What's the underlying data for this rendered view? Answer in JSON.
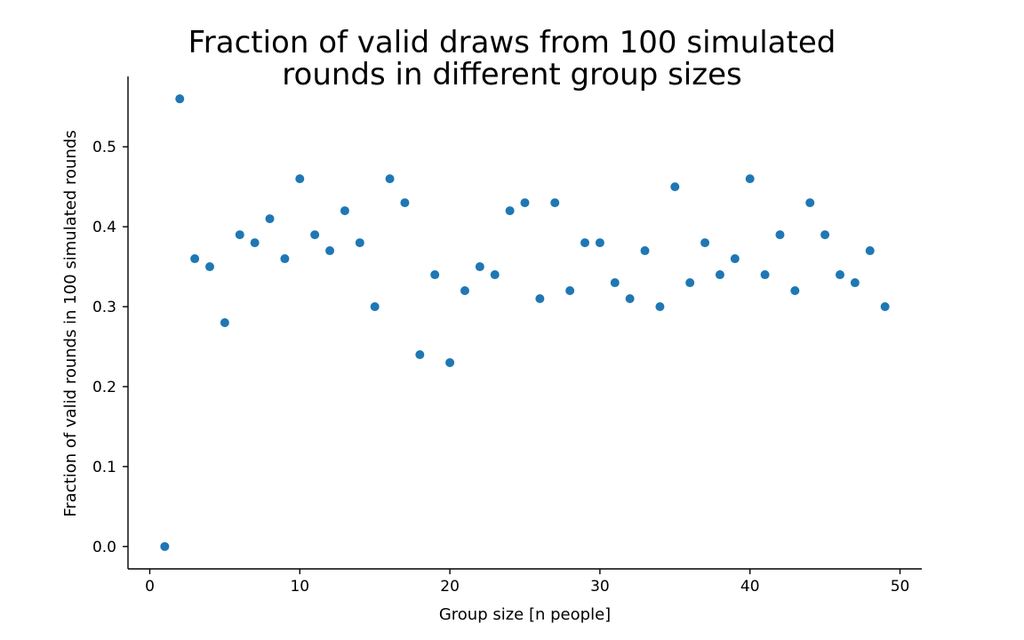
{
  "chart_data": {
    "type": "scatter",
    "title": "Fraction of valid draws from 100 simulated\nrounds in different group sizes",
    "xlabel": "Group size [n people]",
    "ylabel": "Fraction of valid rounds in 100 simulated rounds",
    "xlim": [
      -1.45,
      51.45
    ],
    "ylim": [
      -0.028,
      0.588
    ],
    "xticks": [
      0,
      10,
      20,
      30,
      40,
      50
    ],
    "xtick_labels": [
      "0",
      "10",
      "20",
      "30",
      "40",
      "50"
    ],
    "yticks": [
      0.0,
      0.1,
      0.2,
      0.3,
      0.4,
      0.5
    ],
    "ytick_labels": [
      "0.0",
      "0.1",
      "0.2",
      "0.3",
      "0.4",
      "0.5"
    ],
    "grid": false,
    "marker_color": "#1f77b4",
    "series": [
      {
        "x": [
          1,
          2,
          3,
          4,
          5,
          6,
          7,
          8,
          9,
          10,
          11,
          12,
          13,
          14,
          15,
          16,
          17,
          18,
          19,
          20,
          21,
          22,
          23,
          24,
          25,
          26,
          27,
          28,
          29,
          30,
          31,
          32,
          33,
          34,
          35,
          36,
          37,
          38,
          39,
          40,
          41,
          42,
          43,
          44,
          45,
          46,
          47,
          48,
          49
        ],
        "y": [
          0.0,
          0.56,
          0.36,
          0.35,
          0.28,
          0.39,
          0.38,
          0.41,
          0.36,
          0.46,
          0.39,
          0.37,
          0.42,
          0.38,
          0.3,
          0.46,
          0.43,
          0.24,
          0.34,
          0.23,
          0.32,
          0.35,
          0.34,
          0.42,
          0.43,
          0.31,
          0.43,
          0.32,
          0.38,
          0.38,
          0.33,
          0.31,
          0.37,
          0.3,
          0.45,
          0.33,
          0.38,
          0.34,
          0.36,
          0.46,
          0.34,
          0.39,
          0.32,
          0.43,
          0.39,
          0.34,
          0.33,
          0.37,
          0.3
        ]
      }
    ]
  }
}
